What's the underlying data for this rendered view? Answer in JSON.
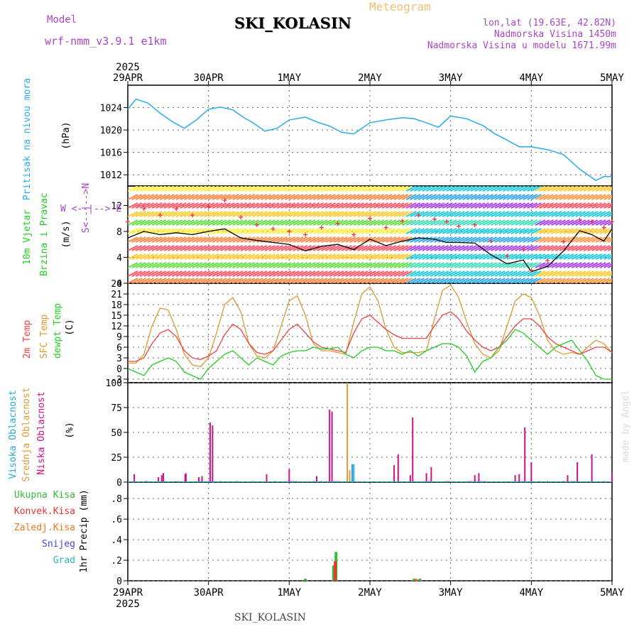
{
  "header": {
    "title": "Meteogram",
    "station": "SKI_KOLASIN",
    "model_label": "Model",
    "model_name": "wrf-nmm_v3.9.1 e1km",
    "lonlat": "lon,lat (19.63E, 42.82N)",
    "altitude": "Nadmorska Visina 1450m",
    "model_altitude": "Nadmorska Visina u modelu 1671.99m",
    "credit": "made by Angel",
    "footer_station": "SKI_KOLASIN"
  },
  "colors": {
    "pressure": "#2aaaee",
    "wind_speed": "#000000",
    "wind_gust": "#ee3344",
    "temp2m": "#ee4444",
    "sfc_temp": "#dd9933",
    "dewpt": "#22cc22",
    "cloud_high": "#22aadd",
    "cloud_mid": "#dd9933",
    "cloud_low": "#cc1188",
    "precip_total": "#33bb33",
    "precip_conv": "#ee3333",
    "precip_frozen": "#ee7722",
    "precip_snow": "#4444ee",
    "precip_hail": "#22bbbb",
    "header_purple": "#aa44cc",
    "title_orange": "#f0c070"
  },
  "chart_data": [
    {
      "type": "line",
      "name": "pressure",
      "axis_label_main": "Pritisak na nivou mora",
      "axis_label_unit": "(hPa)",
      "ylim": [
        1010,
        1028
      ],
      "yticks": [
        1012,
        1016,
        1020,
        1024
      ],
      "x_top_year": "2025",
      "xticks": [
        "29APR",
        "30APR",
        "1MAY",
        "2MAY",
        "3MAY",
        "4MAY",
        "5MAY"
      ],
      "x": [
        0,
        0.1,
        0.25,
        0.4,
        0.55,
        0.7,
        0.85,
        1.0,
        1.15,
        1.3,
        1.45,
        1.55,
        1.7,
        1.85,
        2.0,
        2.2,
        2.35,
        2.5,
        2.65,
        2.8,
        3.0,
        3.2,
        3.4,
        3.55,
        3.7,
        3.85,
        4.0,
        4.2,
        4.4,
        4.55,
        4.7,
        4.85,
        5.0,
        5.2,
        5.4,
        5.6,
        5.8,
        5.9,
        6.0
      ],
      "values": [
        1023.7,
        1025.5,
        1024.8,
        1023,
        1021.5,
        1020.3,
        1021.8,
        1023.7,
        1024.1,
        1023.6,
        1022.1,
        1021.3,
        1019.8,
        1020.3,
        1021.8,
        1022.3,
        1021.4,
        1020.7,
        1019.6,
        1019.3,
        1021.3,
        1021.8,
        1022.2,
        1022.0,
        1021.3,
        1020.5,
        1022.5,
        1022.0,
        1020.8,
        1019.3,
        1018.2,
        1017.0,
        1017.0,
        1016.5,
        1015.6,
        1013.0,
        1011.0,
        1011.7,
        1011.7
      ]
    },
    {
      "type": "line",
      "name": "wind",
      "axis_label_main": "10m Vjetar",
      "axis_label_sub": "Brzina i Pravac",
      "axis_label_unit": "(m/s)",
      "compass_label": "W <--|--> E",
      "compass_vertical": "S<--|-->N",
      "ylim": [
        0,
        15
      ],
      "yticks": [
        0,
        4,
        8,
        12
      ],
      "series": [
        {
          "name": "wind_speed",
          "x": [
            0,
            0.2,
            0.4,
            0.6,
            0.8,
            1.0,
            1.2,
            1.4,
            1.6,
            1.8,
            2.0,
            2.2,
            2.4,
            2.6,
            2.8,
            3.0,
            3.2,
            3.4,
            3.6,
            3.8,
            3.95,
            4.1,
            4.3,
            4.5,
            4.7,
            4.9,
            5.0,
            5.2,
            5.4,
            5.6,
            5.75,
            5.9,
            6.0
          ],
          "values": [
            7.0,
            8.0,
            7.5,
            7.8,
            7.5,
            8.0,
            8.4,
            7.0,
            6.6,
            6.3,
            6.0,
            5.0,
            5.7,
            6.0,
            5.2,
            6.8,
            5.8,
            6.5,
            7.0,
            6.8,
            6.3,
            6.3,
            6.2,
            4.4,
            3.0,
            3.6,
            1.8,
            2.6,
            5.0,
            8.1,
            7.5,
            6.5,
            8.4
          ]
        },
        {
          "name": "wind_gust",
          "x": [
            0,
            0.2,
            0.4,
            0.6,
            0.8,
            1.0,
            1.2,
            1.4,
            1.6,
            1.8,
            2.0,
            2.2,
            2.4,
            2.6,
            2.8,
            3.0,
            3.2,
            3.4,
            3.6,
            3.8,
            3.95,
            4.1,
            4.3,
            4.5,
            4.7,
            4.9,
            5.0,
            5.2,
            5.4,
            5.6,
            5.75,
            5.9,
            6.0
          ],
          "values": [
            9.5,
            11.5,
            10.5,
            11.5,
            10.5,
            11.8,
            12.8,
            10.2,
            9.0,
            8.4,
            8.0,
            7.5,
            8.6,
            9.2,
            7.5,
            10.0,
            8.6,
            9.6,
            10.5,
            9.9,
            9.5,
            8.8,
            9.0,
            6.5,
            4.2,
            5.2,
            2.0,
            3.5,
            6.4,
            9.8,
            9.5,
            8.6,
            9.5
          ]
        }
      ]
    },
    {
      "type": "line",
      "name": "temperature",
      "axis_label_a": "2m Temp",
      "axis_label_b": "SFC Temp",
      "axis_label_c": "dewpt Temp",
      "axis_label_unit": "(C)",
      "ylim": [
        -4,
        24
      ],
      "yticks": [
        -3,
        0,
        3,
        6,
        9,
        12,
        15,
        18,
        21,
        24
      ],
      "series": [
        {
          "name": "temp2m",
          "x": [
            0,
            0.1,
            0.2,
            0.3,
            0.4,
            0.5,
            0.6,
            0.7,
            0.8,
            0.9,
            1.0,
            1.1,
            1.2,
            1.3,
            1.4,
            1.5,
            1.6,
            1.7,
            1.8,
            1.9,
            2.0,
            2.1,
            2.2,
            2.3,
            2.4,
            2.5,
            2.6,
            2.7,
            2.8,
            2.9,
            3.0,
            3.1,
            3.2,
            3.3,
            3.4,
            3.5,
            3.6,
            3.7,
            3.8,
            3.9,
            4.0,
            4.1,
            4.2,
            4.3,
            4.4,
            4.5,
            4.6,
            4.7,
            4.8,
            4.9,
            5.0,
            5.1,
            5.2,
            5.3,
            5.4,
            5.5,
            5.6,
            5.7,
            5.8,
            5.9,
            6.0
          ],
          "values": [
            2,
            2,
            3,
            7,
            10,
            11,
            9,
            5,
            3,
            2.5,
            3.5,
            5,
            9.5,
            12.5,
            11,
            7,
            4.5,
            4,
            5,
            8,
            11,
            12.5,
            10,
            7.5,
            6,
            5.5,
            5,
            4.5,
            10,
            14,
            15,
            13,
            11,
            9.5,
            8.5,
            8.5,
            8.5,
            8.5,
            12,
            15,
            16,
            14,
            10.5,
            8,
            6,
            5,
            6,
            9,
            12,
            14,
            14,
            12,
            9,
            7,
            6,
            5,
            4,
            5,
            6,
            6,
            4.5
          ]
        },
        {
          "name": "sfc_temp",
          "x": [
            0,
            0.1,
            0.2,
            0.3,
            0.4,
            0.5,
            0.6,
            0.7,
            0.8,
            0.9,
            1.0,
            1.1,
            1.2,
            1.3,
            1.4,
            1.5,
            1.6,
            1.7,
            1.8,
            1.9,
            2.0,
            2.1,
            2.2,
            2.3,
            2.4,
            2.5,
            2.6,
            2.7,
            2.8,
            2.9,
            3.0,
            3.1,
            3.2,
            3.3,
            3.4,
            3.5,
            3.6,
            3.7,
            3.8,
            3.9,
            4.0,
            4.1,
            4.2,
            4.3,
            4.4,
            4.5,
            4.6,
            4.7,
            4.8,
            4.9,
            5.0,
            5.1,
            5.2,
            5.3,
            5.4,
            5.5,
            5.6,
            5.7,
            5.8,
            5.9,
            6.0
          ],
          "values": [
            1.5,
            1.5,
            4,
            12,
            17,
            16.5,
            11,
            4,
            1,
            0.5,
            3,
            10,
            18,
            20,
            16,
            7,
            3.5,
            3,
            5,
            12,
            19,
            20.5,
            15,
            7,
            5,
            5,
            4.5,
            4,
            13,
            21,
            23,
            19,
            11,
            6,
            4.5,
            4.5,
            4.5,
            5,
            14,
            22,
            23.5,
            20,
            13,
            7,
            4,
            3,
            5,
            12,
            19,
            21,
            20,
            15,
            8,
            5,
            4,
            4.5,
            4,
            6,
            8,
            7,
            4.5
          ]
        },
        {
          "name": "dewpt",
          "x": [
            0,
            0.1,
            0.2,
            0.3,
            0.4,
            0.5,
            0.6,
            0.7,
            0.8,
            0.9,
            1.0,
            1.1,
            1.2,
            1.3,
            1.4,
            1.5,
            1.6,
            1.7,
            1.8,
            1.9,
            2.0,
            2.1,
            2.2,
            2.3,
            2.4,
            2.5,
            2.6,
            2.7,
            2.8,
            2.9,
            3.0,
            3.1,
            3.2,
            3.3,
            3.4,
            3.5,
            3.6,
            3.7,
            3.8,
            3.9,
            4.0,
            4.1,
            4.2,
            4.3,
            4.4,
            4.5,
            4.6,
            4.7,
            4.8,
            4.9,
            5.0,
            5.1,
            5.2,
            5.3,
            5.4,
            5.5,
            5.6,
            5.7,
            5.8,
            5.9,
            6.0
          ],
          "values": [
            0,
            -1,
            -2,
            1,
            2,
            3,
            2,
            -1,
            -2,
            -3,
            0,
            2,
            4,
            5,
            3,
            1,
            3,
            2,
            1,
            3.5,
            4.5,
            5,
            5,
            6,
            5.5,
            5.5,
            6,
            4,
            3,
            5,
            6,
            6,
            5,
            5,
            4,
            5,
            3.5,
            5,
            6,
            7,
            7,
            6,
            3.5,
            -1,
            2,
            3,
            6,
            8,
            11,
            10,
            8,
            6,
            4,
            6,
            7,
            8,
            5,
            2,
            -2,
            -3,
            -3
          ]
        }
      ]
    },
    {
      "type": "bar",
      "name": "clouds",
      "axis_label_a": "Visoka Oblacnost",
      "axis_label_b": "Srednja Oblacnost",
      "axis_label_c": "Niska Oblacnost",
      "axis_label_unit": "(%)",
      "ylim": [
        0,
        100
      ],
      "yticks": [
        0,
        25,
        50,
        75,
        100
      ],
      "series": [
        {
          "name": "low",
          "x": [
            0.08,
            0.22,
            0.24,
            0.38,
            0.42,
            0.44,
            0.58,
            0.62,
            0.71,
            0.72,
            0.88,
            0.92,
            1.0,
            1.02,
            1.05,
            1.15,
            1.35,
            1.55,
            1.72,
            1.82,
            2.0,
            2.02,
            2.05,
            2.09,
            2.3,
            2.34,
            2.4,
            2.5,
            2.53,
            2.56,
            2.6,
            3.3,
            3.35,
            3.5,
            3.53,
            3.7,
            3.73,
            3.76,
            3.95,
            3.98,
            4.22,
            4.25,
            4.3,
            4.35,
            4.38,
            4.42,
            4.8,
            4.85,
            4.88,
            4.92,
            5.0,
            5.1,
            5.2,
            5.4,
            5.45,
            5.5,
            5.53,
            5.57,
            5.75,
            5.9,
            6.0
          ],
          "values": [
            8,
            1,
            1,
            5,
            7,
            9,
            1,
            1,
            8,
            9,
            5,
            6,
            1,
            60,
            57,
            1,
            1,
            1,
            8,
            1,
            13,
            1,
            1,
            1,
            1,
            6,
            1,
            73,
            71,
            1,
            1,
            17,
            28,
            7,
            65,
            9,
            1,
            15,
            1,
            1,
            1,
            1,
            7,
            9,
            1,
            1,
            7,
            8,
            1,
            55,
            20,
            1,
            1,
            1,
            7,
            1,
            1,
            20,
            28,
            1,
            9
          ]
        },
        {
          "name": "mid",
          "x": [
            2.72,
            2.75,
            3.03
          ],
          "values": [
            99,
            12,
            1
          ]
        },
        {
          "name": "high",
          "x": [
            2.78,
            2.8
          ],
          "values": [
            18,
            18
          ]
        }
      ]
    },
    {
      "type": "bar",
      "name": "precipitation",
      "axis_label_main": "1hr Precip (mm)",
      "legend": [
        "Ukupna Kisa",
        "Konvek.Kisa",
        "Zaledj.Kisa",
        "Snijeg",
        "Grad"
      ],
      "ylim": [
        0,
        0.96
      ],
      "yticks": [
        0,
        0.2,
        0.4,
        0.6,
        0.8
      ],
      "xticks": [
        "29APR",
        "30APR",
        "1MAY",
        "2MAY",
        "3MAY",
        "4MAY",
        "5MAY"
      ],
      "x_bottom_year": "2025",
      "series": [
        {
          "name": "total",
          "x": [
            2.2,
            2.55,
            2.58,
            3.55,
            3.62
          ],
          "values": [
            0.02,
            0.15,
            0.28,
            0.02,
            0.02
          ]
        },
        {
          "name": "conv",
          "x": [
            2.57
          ],
          "values": [
            0.19
          ]
        },
        {
          "name": "frozen",
          "x": [
            3.57
          ],
          "values": [
            0.02
          ]
        }
      ]
    }
  ]
}
